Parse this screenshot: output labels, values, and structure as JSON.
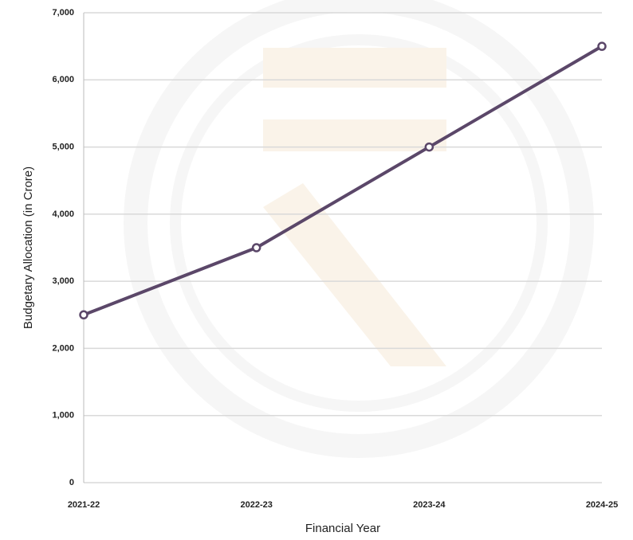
{
  "chart_data": {
    "type": "line",
    "x_label": "Financial Year",
    "y_label": "Budgetary Allocation (in Crore)",
    "categories": [
      "2021-22",
      "2022-23",
      "2023-24",
      "2024-25"
    ],
    "series": [
      {
        "name": "Budgetary Allocation",
        "color": "#5b4769",
        "values": [
          2500,
          3500,
          5000,
          6500
        ]
      }
    ],
    "ylim": [
      0,
      7000
    ],
    "yticks": [
      0,
      {
        "value": 1000,
        "label": "1,000"
      },
      {
        "value": 2000,
        "label": "2,000"
      },
      {
        "value": 3000,
        "label": "3,000"
      },
      {
        "value": 4000,
        "label": "4,000"
      },
      {
        "value": 5000,
        "label": "5,000"
      },
      {
        "value": 6000,
        "label": "6,000"
      },
      {
        "value": 7000,
        "label": "7,000"
      }
    ],
    "grid": true
  }
}
